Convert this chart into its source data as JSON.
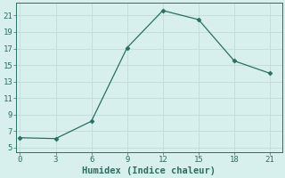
{
  "x": [
    0,
    3,
    6,
    9,
    12,
    15,
    18,
    21
  ],
  "y": [
    6.2,
    6.1,
    8.2,
    17.1,
    21.6,
    20.5,
    15.5,
    14.0
  ],
  "line_color": "#2a6e63",
  "marker": "D",
  "marker_size": 2.5,
  "background_color": "#d8f0ed",
  "grid_color": "#c0dbd8",
  "xlabel": "Humidex (Indice chaleur)",
  "xlim": [
    -0.3,
    22
  ],
  "ylim": [
    4.5,
    22.5
  ],
  "xticks": [
    0,
    3,
    6,
    9,
    12,
    15,
    18,
    21
  ],
  "yticks": [
    5,
    7,
    9,
    11,
    13,
    15,
    17,
    19,
    21
  ],
  "tick_color": "#2a6e63",
  "label_fontsize": 6.5,
  "xlabel_fontsize": 7.5
}
